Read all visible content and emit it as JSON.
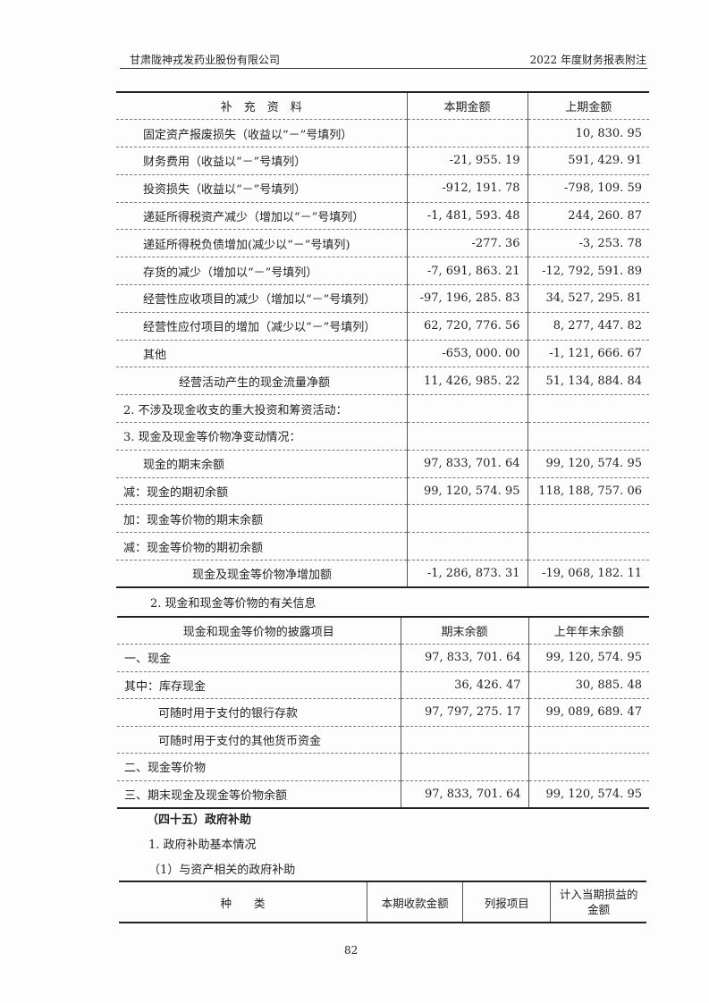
{
  "header": {
    "company": "甘肃陇神戎发药业股份有限公司",
    "report": "2022 年度财务报表附注"
  },
  "table1": {
    "columns": [
      "补　充　资　料",
      "本期金额",
      "上期金额"
    ],
    "rows": [
      {
        "label": "固定资产报废损失（收益以“－”号填列）",
        "current": "",
        "prior": "10, 830. 95"
      },
      {
        "label": "财务费用（收益以“－”号填列）",
        "current": "-21, 955. 19",
        "prior": "591, 429. 91"
      },
      {
        "label": "投资损失（收益以“－”号填列）",
        "current": "-912, 191. 78",
        "prior": "-798, 109. 59"
      },
      {
        "label": "递延所得税资产减少（增加以“－”号填列）",
        "current": "-1, 481, 593. 48",
        "prior": "244, 260. 87"
      },
      {
        "label": "递延所得税负债增加(减少以“－”号填列)",
        "current": "-277. 36",
        "prior": "-3, 253. 78"
      },
      {
        "label": "存货的减少（增加以“－”号填列）",
        "current": "-7, 691, 863. 21",
        "prior": "-12, 792, 591. 89"
      },
      {
        "label": "经营性应收项目的减少（增加以“－”号填列）",
        "current": "-97, 196, 285. 83",
        "prior": "34, 527, 295. 81"
      },
      {
        "label": "经营性应付项目的增加（减少以“－”号填列）",
        "current": "62, 720, 776. 56",
        "prior": "8, 277, 447. 82"
      },
      {
        "label": "其他",
        "current": "-653, 000. 00",
        "prior": "-1, 121, 666. 67"
      },
      {
        "label": "经营活动产生的现金流量净额",
        "current": "11, 426, 985. 22",
        "prior": "51, 134, 884. 84"
      },
      {
        "label": "2. 不涉及现金收支的重大投资和筹资活动：",
        "current": "",
        "prior": ""
      },
      {
        "label": "3. 现金及现金等价物净变动情况：",
        "current": "",
        "prior": ""
      },
      {
        "label": "现金的期末余额",
        "current": "97, 833, 701. 64",
        "prior": "99, 120, 574. 95"
      },
      {
        "label": "减：现金的期初余额",
        "current": "99, 120, 574. 95",
        "prior": "118, 188, 757. 06"
      },
      {
        "label": "加：现金等价物的期末余额",
        "current": "",
        "prior": ""
      },
      {
        "label": "减：现金等价物的期初余额",
        "current": "",
        "prior": ""
      },
      {
        "label": "现金及现金等价物净增加额",
        "current": "-1, 286, 873. 31",
        "prior": "-19, 068, 182. 11"
      }
    ]
  },
  "section2_title": "2. 现金和现金等价物的有关信息",
  "table2": {
    "columns": [
      "现金和现金等价物的披露项目",
      "期末余额",
      "上年年末余额"
    ],
    "rows": [
      {
        "label": "一、现金",
        "current": "97, 833, 701. 64",
        "prior": "99, 120, 574. 95"
      },
      {
        "label": "其中：库存现金",
        "current": "36, 426. 47",
        "prior": "30, 885. 48"
      },
      {
        "label": "可随时用于支付的银行存款",
        "current": "97, 797, 275. 17",
        "prior": "99, 089, 689. 47"
      },
      {
        "label": "可随时用于支付的其他货币资金",
        "current": "",
        "prior": ""
      },
      {
        "label": "二、现金等价物",
        "current": "",
        "prior": ""
      },
      {
        "label": "三、期末现金及现金等价物余额",
        "current": "97, 833, 701. 64",
        "prior": "99, 120, 574. 95"
      }
    ]
  },
  "section45_title": "（四十五）政府补助",
  "sub1": "1. 政府补助基本情况",
  "sub1_1": "（1）与资产相关的政府补助",
  "table3": {
    "columns": [
      "种　　类",
      "本期收款金额",
      "列报项目",
      "计入当期损益的金额"
    ]
  },
  "page_number": "82"
}
